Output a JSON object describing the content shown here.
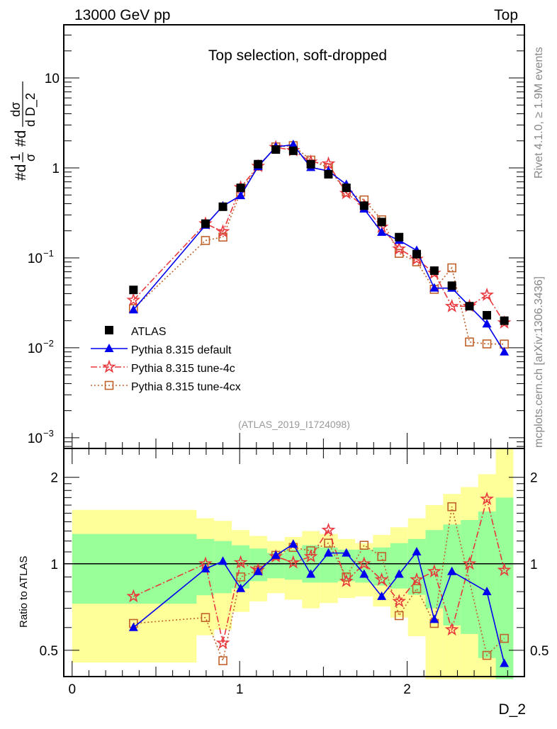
{
  "header": {
    "left": "13000 GeV pp",
    "right": "Top",
    "side_top": "Rivet 4.1.0, ≥ 1.9M events",
    "side_bottom": "mcplots.cern.ch [arXiv:1306.3436]"
  },
  "chart_data": {
    "type": "line",
    "title": "Top selection, soft-dropped",
    "analysis": "(ATLAS_2019_I1724098)",
    "ylabel_parts": [
      "#d",
      "1",
      "σ",
      "#d",
      "dσ",
      "d D_2"
    ],
    "xlabel": "D_2",
    "ratio_ylabel": "Ratio to ATLAS",
    "xlim": [
      -0.05,
      2.7
    ],
    "ylim": [
      0.00076,
      39
    ],
    "yscale": "log",
    "ratio_ylim": [
      0.405,
      2.52
    ],
    "x_ticks": [
      "0",
      "1",
      "2"
    ],
    "y_tick_labels": [
      {
        "v": 10,
        "label": "10",
        "sup": ""
      },
      {
        "v": 1,
        "label": "1",
        "sup": ""
      },
      {
        "v": 0.1,
        "label": "10",
        "sup": "−1"
      },
      {
        "v": 0.01,
        "label": "10",
        "sup": "−2"
      },
      {
        "v": 0.001,
        "label": "10",
        "sup": "−3"
      }
    ],
    "ratio_tick_labels": [
      {
        "v": 2,
        "label": "2"
      },
      {
        "v": 1,
        "label": "1"
      },
      {
        "v": 0.5,
        "label": "0.5"
      }
    ],
    "bin_edges": [
      0,
      0.743,
      0.848,
      0.953,
      1.059,
      1.164,
      1.269,
      1.373,
      1.478,
      1.586,
      1.69,
      1.796,
      1.9,
      2.005,
      2.11,
      2.215,
      2.32,
      2.424,
      2.529,
      2.634
    ],
    "x": [
      0.366,
      0.796,
      0.9,
      1.006,
      1.11,
      1.216,
      1.32,
      1.425,
      1.53,
      1.637,
      1.743,
      1.848,
      1.952,
      2.057,
      2.162,
      2.267,
      2.372,
      2.476,
      2.58
    ],
    "data": {
      "name": "ATLAS",
      "values": [
        0.044,
        0.24,
        0.37,
        0.6,
        1.1,
        1.6,
        1.55,
        1.1,
        0.85,
        0.6,
        0.38,
        0.25,
        0.17,
        0.11,
        0.072,
        0.049,
        0.029,
        0.023,
        0.02
      ],
      "band_stat": [
        [
          0.726,
          1.27
        ],
        [
          0.777,
          1.22
        ],
        [
          0.79,
          1.2
        ],
        [
          0.82,
          1.16
        ],
        [
          0.87,
          1.13
        ],
        [
          0.89,
          1.09
        ],
        [
          0.88,
          1.12
        ],
        [
          0.86,
          1.16
        ],
        [
          0.86,
          1.14
        ],
        [
          0.87,
          1.12
        ],
        [
          0.86,
          1.12
        ],
        [
          0.84,
          1.14
        ],
        [
          0.82,
          1.18
        ],
        [
          0.78,
          1.22
        ],
        [
          0.7,
          1.31
        ],
        [
          0.61,
          1.37
        ],
        [
          0.57,
          1.42
        ],
        [
          0.47,
          1.52
        ],
        [
          0.35,
          1.7
        ]
      ],
      "band_total": [
        [
          0.453,
          1.54
        ],
        [
          0.564,
          1.44
        ],
        [
          0.59,
          1.41
        ],
        [
          0.68,
          1.31
        ],
        [
          0.74,
          1.25
        ],
        [
          0.79,
          1.2
        ],
        [
          0.75,
          1.24
        ],
        [
          0.7,
          1.3
        ],
        [
          0.73,
          1.27
        ],
        [
          0.76,
          1.22
        ],
        [
          0.77,
          1.18
        ],
        [
          0.71,
          1.26
        ],
        [
          0.65,
          1.34
        ],
        [
          0.56,
          1.44
        ],
        [
          0.35,
          1.6
        ],
        [
          0.35,
          1.75
        ],
        [
          0.35,
          1.85
        ],
        [
          0.35,
          2.05
        ],
        [
          0.35,
          2.6
        ]
      ]
    },
    "series": [
      {
        "name": "Pythia 8.315 default",
        "color": "#0000ee",
        "marker": "triangle",
        "dash": "",
        "ratio": [
          0.6,
          0.96,
          1.02,
          0.82,
          0.94,
          1.07,
          1.17,
          0.92,
          1.09,
          1.09,
          0.92,
          0.77,
          0.92,
          1.1,
          0.64,
          0.94,
          null,
          0.8,
          0.45
        ]
      },
      {
        "name": "Pythia 8.315 tune-4c",
        "color": "#e8383d",
        "marker": "star",
        "dash": "9,3,2,3",
        "ratio": [
          0.77,
          1.0,
          0.53,
          1.01,
          0.95,
          1.06,
          1.01,
          1.06,
          1.31,
          0.87,
          1.0,
          0.88,
          0.74,
          0.88,
          0.94,
          0.59,
          1.0,
          1.68,
          0.95
        ]
      },
      {
        "name": "Pythia 8.315 tune-4cx",
        "color": "#c0622b",
        "marker": "square-open",
        "dash": "2,3",
        "ratio": [
          0.62,
          0.65,
          0.46,
          0.9,
          0.95,
          1.07,
          1.14,
          1.11,
          1.18,
          0.9,
          1.16,
          1.06,
          0.66,
          0.82,
          0.62,
          1.58,
          0.4,
          0.48,
          0.55
        ]
      }
    ],
    "legend_position": "lower-left",
    "colors": {
      "stat_band": "#99ff99",
      "total_band": "#ffff99"
    }
  }
}
